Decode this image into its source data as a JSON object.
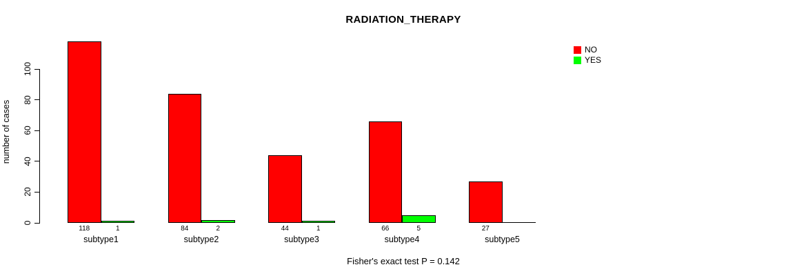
{
  "chart_data": {
    "type": "bar",
    "grouped": true,
    "title": "RADIATION_THERAPY",
    "xlabel": "",
    "ylabel": "number of cases",
    "annotation": "Fisher's exact test P = 0.142",
    "categories": [
      "subtype1",
      "subtype2",
      "subtype3",
      "subtype4",
      "subtype5"
    ],
    "series": [
      {
        "name": "NO",
        "color": "#FF0000",
        "values": [
          118,
          84,
          44,
          66,
          27
        ]
      },
      {
        "name": "YES",
        "color": "#00FF00",
        "values": [
          1,
          2,
          1,
          5,
          0
        ]
      }
    ],
    "bar_value_labels": [
      [
        "118",
        "1"
      ],
      [
        "84",
        "2"
      ],
      [
        "44",
        "1"
      ],
      [
        "66",
        "5"
      ],
      [
        "27",
        ""
      ]
    ],
    "yticks": [
      0,
      20,
      40,
      60,
      80,
      100
    ],
    "ylim": [
      0,
      120
    ],
    "grid": false,
    "legend_position": "topright",
    "legend": [
      {
        "label": "NO",
        "color": "#FF0000"
      },
      {
        "label": "YES",
        "color": "#00FF00"
      }
    ],
    "background": "#FFFFFF",
    "axis_color": "#000000"
  }
}
